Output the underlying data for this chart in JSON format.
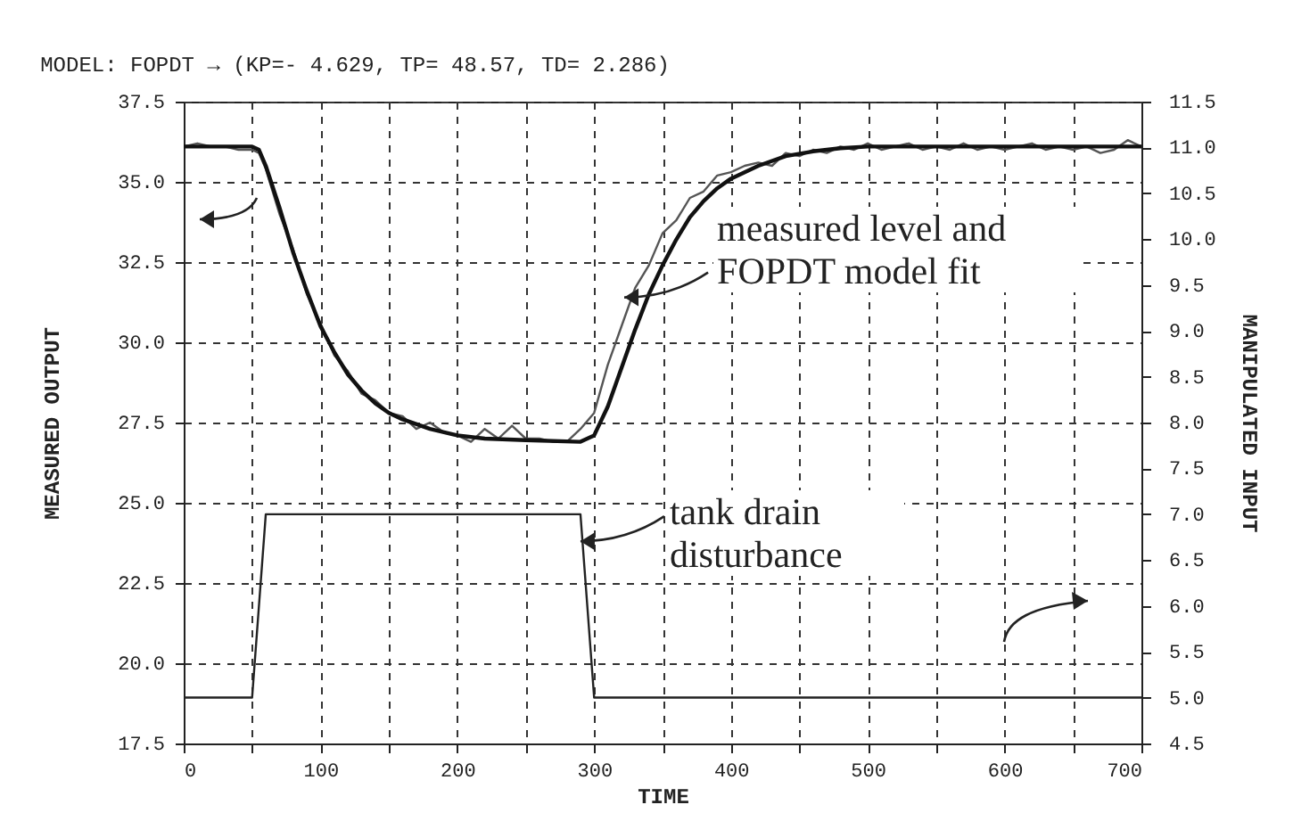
{
  "chart_data": {
    "type": "line",
    "subtitle": "MODEL: FOPDT → (KP=- 4.629, TP= 48.57, TD= 2.286)",
    "xlabel": "TIME",
    "ylabel": "MEASURED OUTPUT",
    "y2label": "MANIPULATED INPUT",
    "xlim": [
      0,
      700
    ],
    "ylim": [
      17.5,
      37.5
    ],
    "y2lim": [
      4.5,
      11.5
    ],
    "xticks": [
      0,
      {
        "value": 50,
        "label": null
      },
      100,
      {
        "value": 150,
        "label": null
      },
      200,
      {
        "value": 250,
        "label": null
      },
      300,
      {
        "value": 350,
        "label": null
      },
      400,
      {
        "value": 450,
        "label": null
      },
      500,
      {
        "value": 550,
        "label": null
      },
      600,
      {
        "value": 650,
        "label": null
      },
      700
    ],
    "yticks": [
      {
        "value": 17.5,
        "label": "17.5"
      },
      {
        "value": 20,
        "label": "20.0"
      },
      {
        "value": 22.5,
        "label": "22.5"
      },
      {
        "value": 25,
        "label": "25.0"
      },
      {
        "value": 27.5,
        "label": "27.5"
      },
      {
        "value": 30,
        "label": "30.0"
      },
      {
        "value": 32.5,
        "label": "32.5"
      },
      {
        "value": 35,
        "label": "35.0"
      },
      {
        "value": 37.5,
        "label": "37.5"
      }
    ],
    "y2ticks": [
      {
        "value": 4.5,
        "label": "4.5"
      },
      {
        "value": 5,
        "label": "5.0"
      },
      {
        "value": 5.5,
        "label": "5.5"
      },
      {
        "value": 6,
        "label": "6.0"
      },
      {
        "value": 6.5,
        "label": "6.5"
      },
      {
        "value": 7,
        "label": "7.0"
      },
      {
        "value": 7.5,
        "label": "7.5"
      },
      {
        "value": 8,
        "label": "8.0"
      },
      {
        "value": 8.5,
        "label": "8.5"
      },
      {
        "value": 9,
        "label": "9.0"
      },
      {
        "value": 9.5,
        "label": "9.5"
      },
      {
        "value": 10,
        "label": "10.0"
      },
      {
        "value": 10.5,
        "label": "10.5"
      },
      {
        "value": 11,
        "label": "11.0"
      },
      {
        "value": 11.5,
        "label": "11.5"
      }
    ],
    "grid": true,
    "line_style": "solid",
    "annotations": [
      {
        "text": "measured level and FOPDT model fit",
        "x": 322,
        "y": 31.4
      },
      {
        "text": "tank drain disturbance",
        "x": 290,
        "y": 23.8
      }
    ],
    "series": [
      {
        "color": "#555555",
        "x": [
          0,
          10,
          20,
          30,
          40,
          50,
          55,
          60,
          70,
          80,
          90,
          100,
          110,
          120,
          130,
          140,
          150,
          160,
          170,
          180,
          190,
          200,
          210,
          220,
          230,
          240,
          250,
          260,
          270,
          280,
          290,
          300,
          310,
          320,
          330,
          340,
          350,
          360,
          370,
          380,
          390,
          400,
          410,
          420,
          430,
          440,
          450,
          460,
          470,
          480,
          490,
          500,
          510,
          520,
          530,
          540,
          550,
          560,
          570,
          580,
          590,
          600,
          610,
          620,
          630,
          640,
          650,
          660,
          670,
          680,
          690,
          700
        ],
        "values": [
          36.1,
          36.2,
          36.1,
          36.1,
          36.0,
          36.0,
          35.9,
          35.4,
          34.0,
          32.9,
          31.5,
          30.6,
          29.6,
          29.1,
          28.4,
          28.2,
          27.8,
          27.7,
          27.3,
          27.5,
          27.2,
          27.1,
          26.9,
          27.3,
          27.0,
          27.4,
          27.0,
          27.0,
          26.9,
          26.9,
          27.3,
          27.8,
          29.3,
          30.5,
          31.7,
          32.4,
          33.4,
          33.8,
          34.5,
          34.7,
          35.2,
          35.3,
          35.5,
          35.6,
          35.5,
          35.9,
          35.8,
          36.0,
          35.9,
          36.1,
          36.0,
          36.2,
          36.0,
          36.1,
          36.2,
          36.0,
          36.1,
          36.0,
          36.2,
          36.0,
          36.1,
          36.0,
          36.1,
          36.2,
          36.0,
          36.1,
          36.0,
          36.1,
          35.9,
          36.0,
          36.3,
          36.1
        ]
      },
      {
        "color": "#111111",
        "x": [
          0,
          50,
          55,
          60,
          70,
          80,
          90,
          100,
          110,
          120,
          130,
          140,
          150,
          160,
          180,
          200,
          220,
          250,
          290,
          300,
          310,
          320,
          330,
          340,
          350,
          360,
          370,
          380,
          390,
          400,
          420,
          440,
          460,
          480,
          500,
          700
        ],
        "values": [
          36.1,
          36.1,
          36.0,
          35.5,
          34.2,
          32.8,
          31.6,
          30.5,
          29.7,
          29.0,
          28.5,
          28.1,
          27.8,
          27.6,
          27.3,
          27.1,
          27.0,
          26.95,
          26.9,
          27.1,
          28.0,
          29.2,
          30.4,
          31.5,
          32.4,
          33.2,
          33.9,
          34.4,
          34.8,
          35.1,
          35.5,
          35.8,
          35.95,
          36.05,
          36.1,
          36.1
        ]
      },
      {
        "color": "#222222",
        "axis": "y2",
        "x": [
          0,
          50,
          60,
          290,
          300,
          700
        ],
        "values": [
          5,
          5,
          7,
          7,
          5,
          5
        ]
      }
    ]
  }
}
